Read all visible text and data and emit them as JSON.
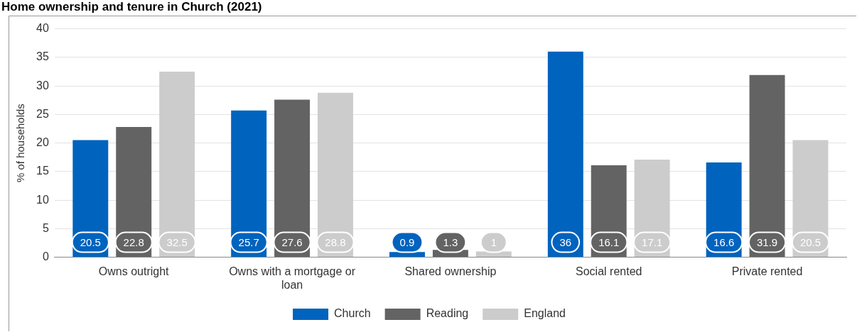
{
  "chart_data": {
    "type": "bar",
    "title": "Home ownership and tenure in Church (2021)",
    "ylabel": "% of households",
    "categories": [
      "Owns outright",
      "Owns with a mortgage or loan",
      "Shared ownership",
      "Social rented",
      "Private rented"
    ],
    "series": [
      {
        "name": "Church",
        "color": "#0063be",
        "values": [
          20.5,
          25.7,
          0.9,
          36,
          16.6
        ]
      },
      {
        "name": "Reading",
        "color": "#636363",
        "values": [
          22.8,
          27.6,
          1.3,
          16.1,
          31.9
        ]
      },
      {
        "name": "England",
        "color": "#cccccc",
        "values": [
          32.5,
          28.8,
          1,
          17.1,
          20.5
        ]
      }
    ],
    "ylim": [
      0,
      40
    ],
    "yticks": [
      0,
      5,
      10,
      15,
      20,
      25,
      30,
      35,
      40
    ],
    "grid": "y",
    "legend": "bottom",
    "data_labels": true
  }
}
